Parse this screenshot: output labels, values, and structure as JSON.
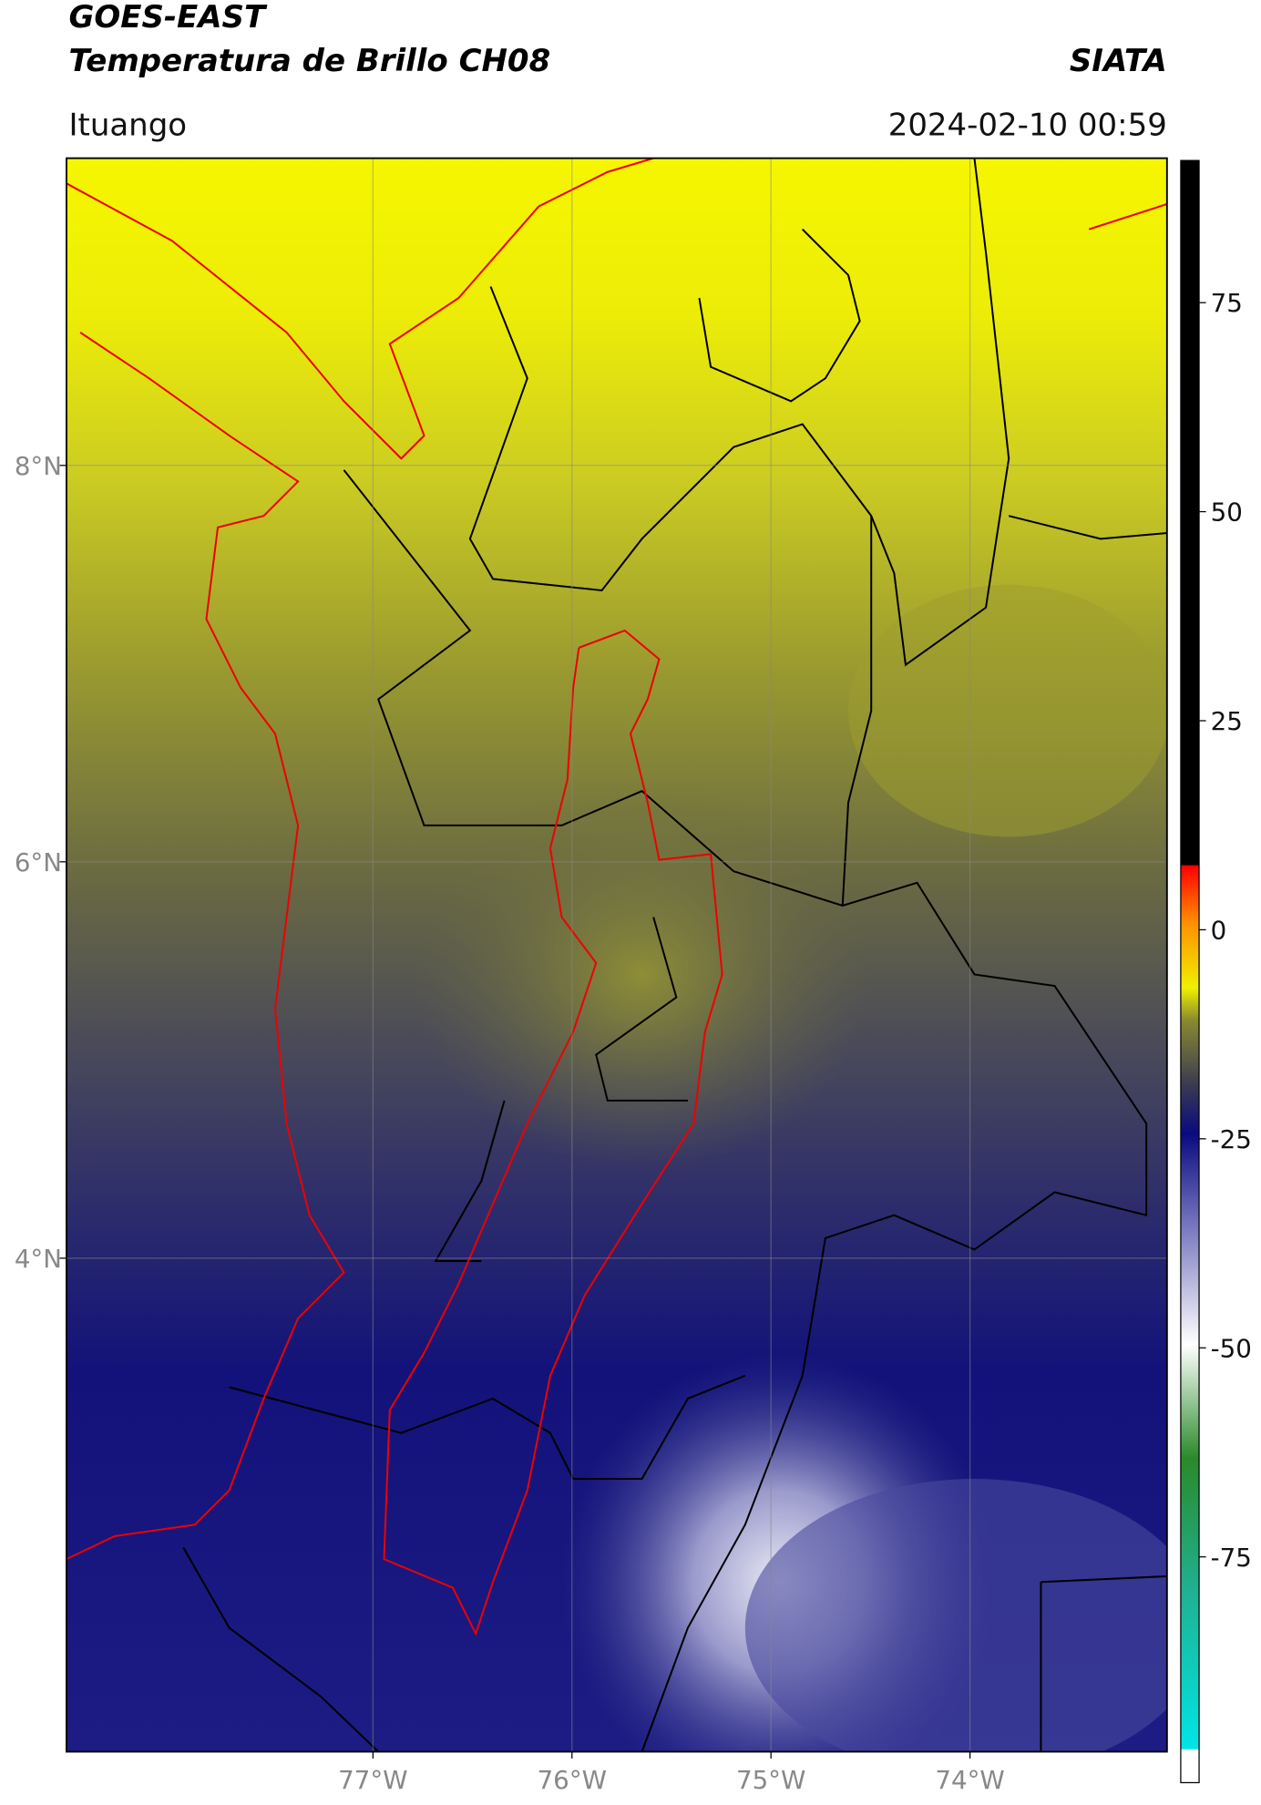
{
  "header": {
    "title": "GOES-EAST",
    "subtitle": "Temperatura de Brillo CH08",
    "source": "SIATA",
    "location": "Ituango",
    "datetime": "2024-02-10 00:59"
  },
  "map": {
    "lonlim": [
      -78.54,
      -73.01
    ],
    "latlim": [
      1.51,
      9.55
    ],
    "lat_ticks": [
      {
        "value": 8,
        "label": "8°N"
      },
      {
        "value": 6,
        "label": "6°N"
      },
      {
        "value": 4,
        "label": "4°N"
      }
    ],
    "lon_ticks": [
      {
        "value": -77,
        "label": "77°W"
      },
      {
        "value": -76,
        "label": "76°W"
      },
      {
        "value": -75,
        "label": "75°W"
      },
      {
        "value": -74,
        "label": "74°W"
      }
    ]
  },
  "colorbar": {
    "lim": [
      -102,
      92
    ],
    "ticks": [
      75,
      50,
      25,
      0,
      -25,
      -50,
      -75
    ]
  }
}
